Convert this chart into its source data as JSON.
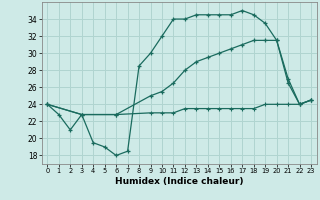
{
  "xlabel": "Humidex (Indice chaleur)",
  "background_color": "#ceeae7",
  "grid_color": "#b0d4d0",
  "line_color": "#1a6b5e",
  "xlim": [
    -0.5,
    23.5
  ],
  "ylim": [
    17,
    36
  ],
  "yticks": [
    18,
    20,
    22,
    24,
    26,
    28,
    30,
    32,
    34
  ],
  "xticks": [
    0,
    1,
    2,
    3,
    4,
    5,
    6,
    7,
    8,
    9,
    10,
    11,
    12,
    13,
    14,
    15,
    16,
    17,
    18,
    19,
    20,
    21,
    22,
    23
  ],
  "line1_x": [
    0,
    1,
    2,
    3,
    4,
    5,
    6,
    7,
    8,
    9,
    10,
    11,
    12,
    13,
    14,
    15,
    16,
    17,
    18,
    19,
    20,
    21,
    22,
    23
  ],
  "line1_y": [
    24,
    22.8,
    21,
    22.8,
    19.5,
    19,
    18,
    18.5,
    28.5,
    30,
    32,
    34,
    34,
    34.5,
    34.5,
    34.5,
    34.5,
    35,
    34.5,
    33.5,
    31.5,
    27,
    24,
    24.5
  ],
  "line2_x": [
    0,
    3,
    6,
    9,
    10,
    11,
    12,
    13,
    14,
    15,
    16,
    17,
    18,
    19,
    20,
    21,
    22,
    23
  ],
  "line2_y": [
    24,
    22.8,
    22.8,
    25,
    25.5,
    26.5,
    28,
    29,
    29.5,
    30,
    30.5,
    31,
    31.5,
    31.5,
    31.5,
    26.5,
    24,
    24.5
  ],
  "line3_x": [
    0,
    3,
    6,
    9,
    10,
    11,
    12,
    13,
    14,
    15,
    16,
    17,
    18,
    19,
    20,
    21,
    22,
    23
  ],
  "line3_y": [
    24,
    22.8,
    22.8,
    23,
    23,
    23,
    23.5,
    23.5,
    23.5,
    23.5,
    23.5,
    23.5,
    23.5,
    24,
    24,
    24,
    24,
    24.5
  ]
}
